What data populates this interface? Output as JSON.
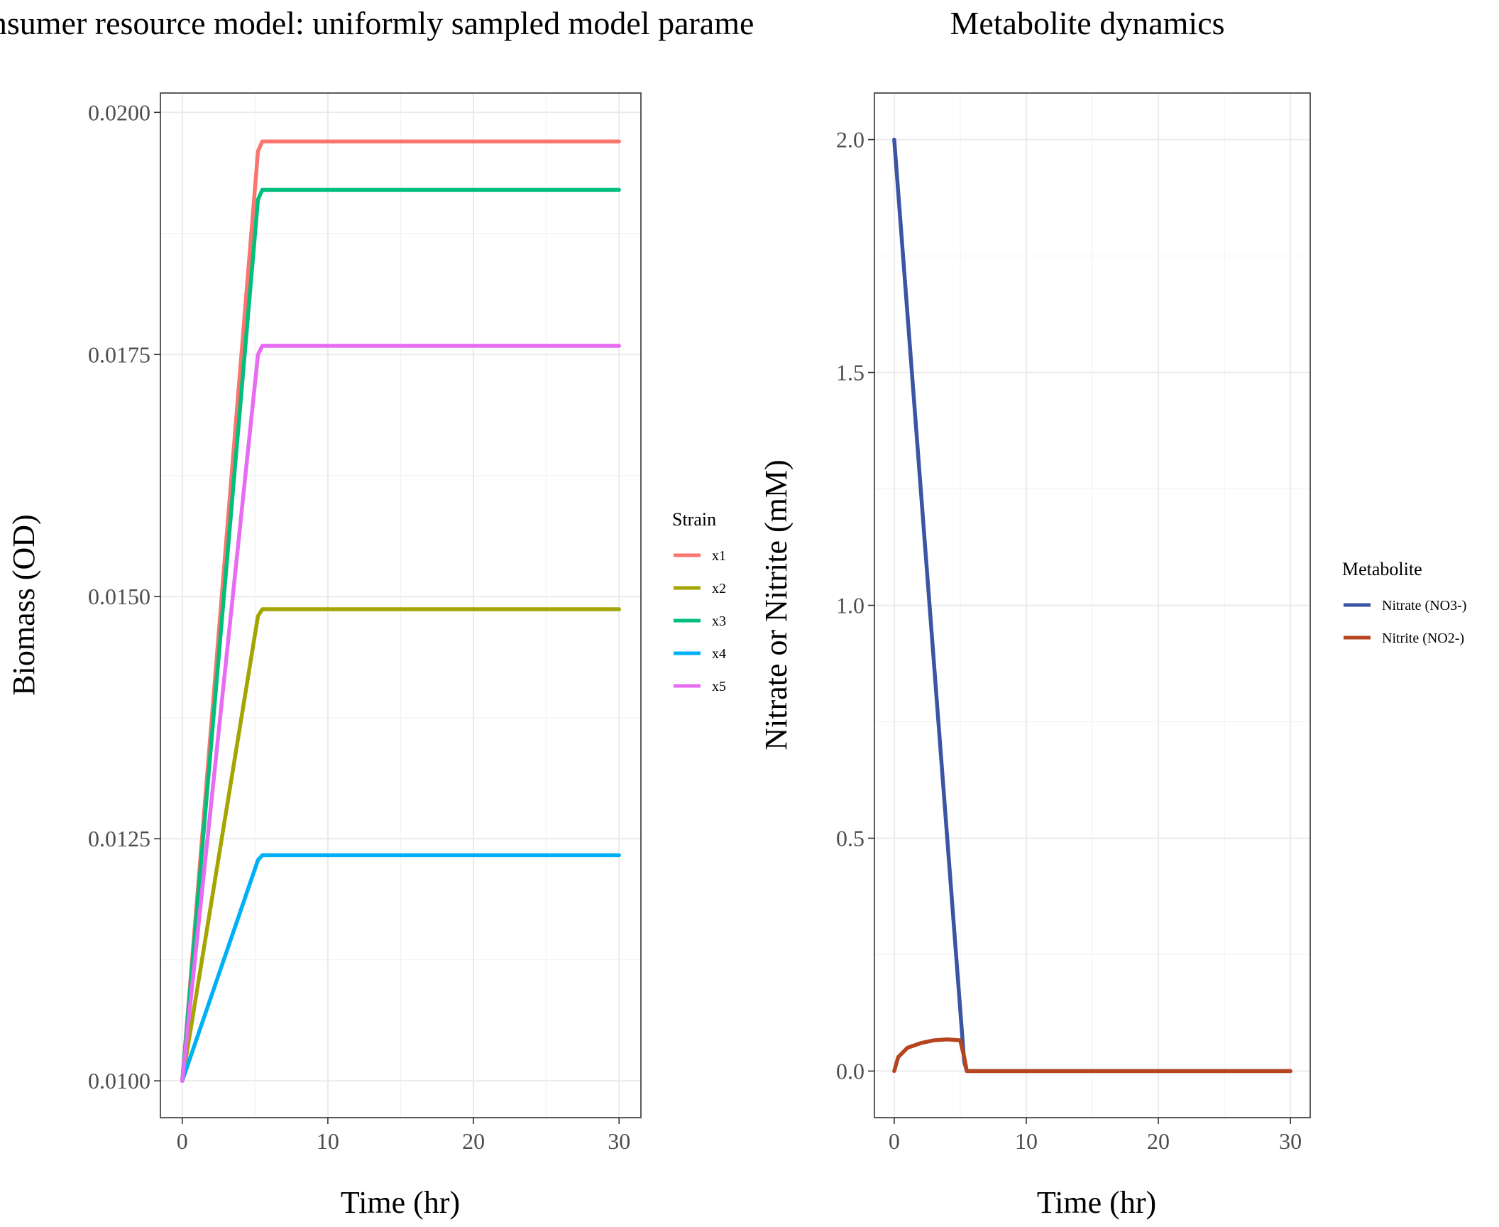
{
  "chart_data": [
    {
      "type": "line",
      "title": "Consumer resource model: uniformly sampled model parameters",
      "xlabel": "Time (hr)",
      "ylabel": "Biomass (OD)",
      "xlim": [
        -1.5,
        31.5
      ],
      "ylim": [
        0.00962,
        0.0202
      ],
      "x_ticks": [
        0,
        10,
        20,
        30
      ],
      "x_tick_labels": [
        "0",
        "10",
        "20",
        "30"
      ],
      "y_ticks": [
        0.01,
        0.0125,
        0.015,
        0.0175,
        0.02
      ],
      "y_tick_labels": [
        "0.0100",
        "0.0125",
        "0.0150",
        "0.0175",
        "0.0200"
      ],
      "grid": true,
      "legend": {
        "title": "Strain",
        "placement": "right"
      },
      "series": [
        {
          "name": "x1",
          "color": "#F8766D",
          "x": [
            0,
            5.2,
            5.5,
            30
          ],
          "y": [
            0.01,
            0.0196,
            0.0197,
            0.0197
          ]
        },
        {
          "name": "x2",
          "color": "#A3A500",
          "x": [
            0,
            5.2,
            5.5,
            30
          ],
          "y": [
            0.01,
            0.0148,
            0.01487,
            0.01487
          ]
        },
        {
          "name": "x3",
          "color": "#00BF7D",
          "x": [
            0,
            5.2,
            5.5,
            30
          ],
          "y": [
            0.01,
            0.0191,
            0.0192,
            0.0192
          ]
        },
        {
          "name": "x4",
          "color": "#00B0F6",
          "x": [
            0,
            5.2,
            5.5,
            30
          ],
          "y": [
            0.01,
            0.01228,
            0.01233,
            0.01233
          ]
        },
        {
          "name": "x5",
          "color": "#E76BF3",
          "x": [
            0,
            5.2,
            5.5,
            30
          ],
          "y": [
            0.01,
            0.0175,
            0.01759,
            0.01759
          ]
        }
      ]
    },
    {
      "type": "line",
      "title": "Metabolite dynamics",
      "xlabel": "Time (hr)",
      "ylabel": "Nitrate or Nitrite (mM)",
      "xlim": [
        -1.5,
        31.5
      ],
      "ylim": [
        -0.1,
        2.1
      ],
      "x_ticks": [
        0,
        10,
        20,
        30
      ],
      "x_tick_labels": [
        "0",
        "10",
        "20",
        "30"
      ],
      "y_ticks": [
        0.0,
        0.5,
        1.0,
        1.5,
        2.0
      ],
      "y_tick_labels": [
        "0.0",
        "0.5",
        "1.0",
        "1.5",
        "2.0"
      ],
      "grid": true,
      "legend": {
        "title": "Metabolite",
        "placement": "right"
      },
      "series": [
        {
          "name": "Nitrate (NO3-)",
          "color": "#3B54A4",
          "x": [
            0,
            5.3,
            5.5,
            30
          ],
          "y": [
            2.0,
            0.02,
            0.0,
            0.0
          ]
        },
        {
          "name": "Nitrite (NO2-)",
          "color": "#B5441F",
          "x": [
            0,
            0.3,
            1,
            2,
            3,
            4,
            5,
            5.3,
            5.5,
            30
          ],
          "y": [
            0.0,
            0.03,
            0.05,
            0.06,
            0.066,
            0.068,
            0.066,
            0.03,
            0.0,
            0.0
          ]
        }
      ]
    }
  ]
}
